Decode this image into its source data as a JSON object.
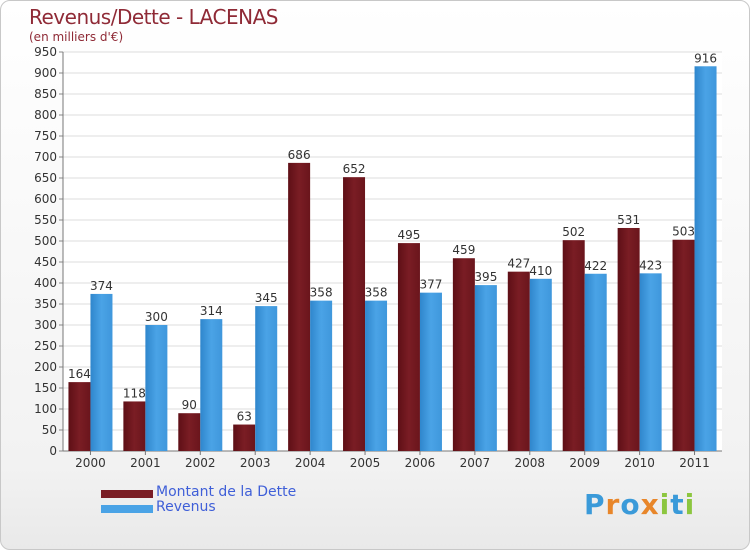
{
  "chart_data": {
    "type": "bar",
    "title": "Revenus/Dette - LACENAS",
    "subtitle": "(en milliers d'€)",
    "xlabel": "",
    "ylabel": "",
    "ylim": [
      0,
      950
    ],
    "yticks": [
      "0",
      "50",
      "100",
      "150",
      "200",
      "250",
      "300",
      "350",
      "400",
      "450",
      "500",
      "550",
      "600",
      "650",
      "700",
      "750",
      "800",
      "850",
      "900",
      "950"
    ],
    "grid": true,
    "categories": [
      "2000",
      "2001",
      "2002",
      "2003",
      "2004",
      "2005",
      "2006",
      "2007",
      "2008",
      "2009",
      "2010",
      "2011"
    ],
    "series": [
      {
        "name": "Montant de la Dette",
        "color": "#7a1d24",
        "values": [
          164,
          118,
          90,
          63,
          686,
          652,
          495,
          459,
          427,
          502,
          531,
          503
        ]
      },
      {
        "name": "Revenus",
        "color": "#4aa3e6",
        "values": [
          374,
          300,
          314,
          345,
          358,
          358,
          377,
          395,
          410,
          422,
          423,
          916
        ]
      }
    ],
    "legend_position": "bottom-left"
  },
  "logo": {
    "text": "Proxiti",
    "letters": [
      "P",
      "r",
      "o",
      "x",
      "i",
      "t",
      "i"
    ],
    "colors": [
      "#3a9ad9",
      "#e8862a",
      "#3a9ad9",
      "#e8862a",
      "#8cc63f",
      "#3a9ad9",
      "#8cc63f"
    ]
  }
}
